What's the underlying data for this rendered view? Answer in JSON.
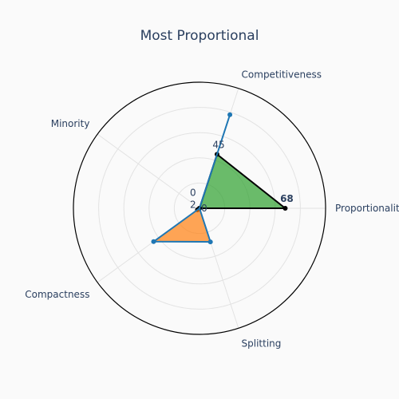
{
  "chart_data": {
    "type": "radar",
    "title": "Most Proportional",
    "axes": [
      "Proportionality",
      "Competitiveness",
      "Minority",
      "Compactness",
      "Splitting"
    ],
    "range": [
      0,
      100
    ],
    "series": [
      {
        "values": [
          68,
          45,
          0,
          2,
          0
        ],
        "color": "#2ca02c",
        "line_color": "#000000"
      },
      {
        "values": [
          0,
          0,
          0,
          45,
          28
        ],
        "color": "#ff7f0e",
        "line_color": "#1f77b4"
      },
      {
        "values": [
          0,
          78,
          0,
          0,
          0
        ],
        "color": "#1f77b4",
        "line_color": "#1f77b4"
      }
    ],
    "labels": [
      {
        "text": "68",
        "axis": 0,
        "r": 68,
        "bold": true
      },
      {
        "text": "45",
        "axis": 1,
        "r": 45,
        "bold": false
      },
      {
        "text": "0",
        "axis": 2,
        "r": 8,
        "bold": false
      },
      {
        "text": "2",
        "axis": 3,
        "r": 8,
        "bold": false
      },
      {
        "text": "0",
        "axis": 4,
        "r": 8,
        "bold": false
      }
    ],
    "grid": true,
    "legend": "none"
  }
}
